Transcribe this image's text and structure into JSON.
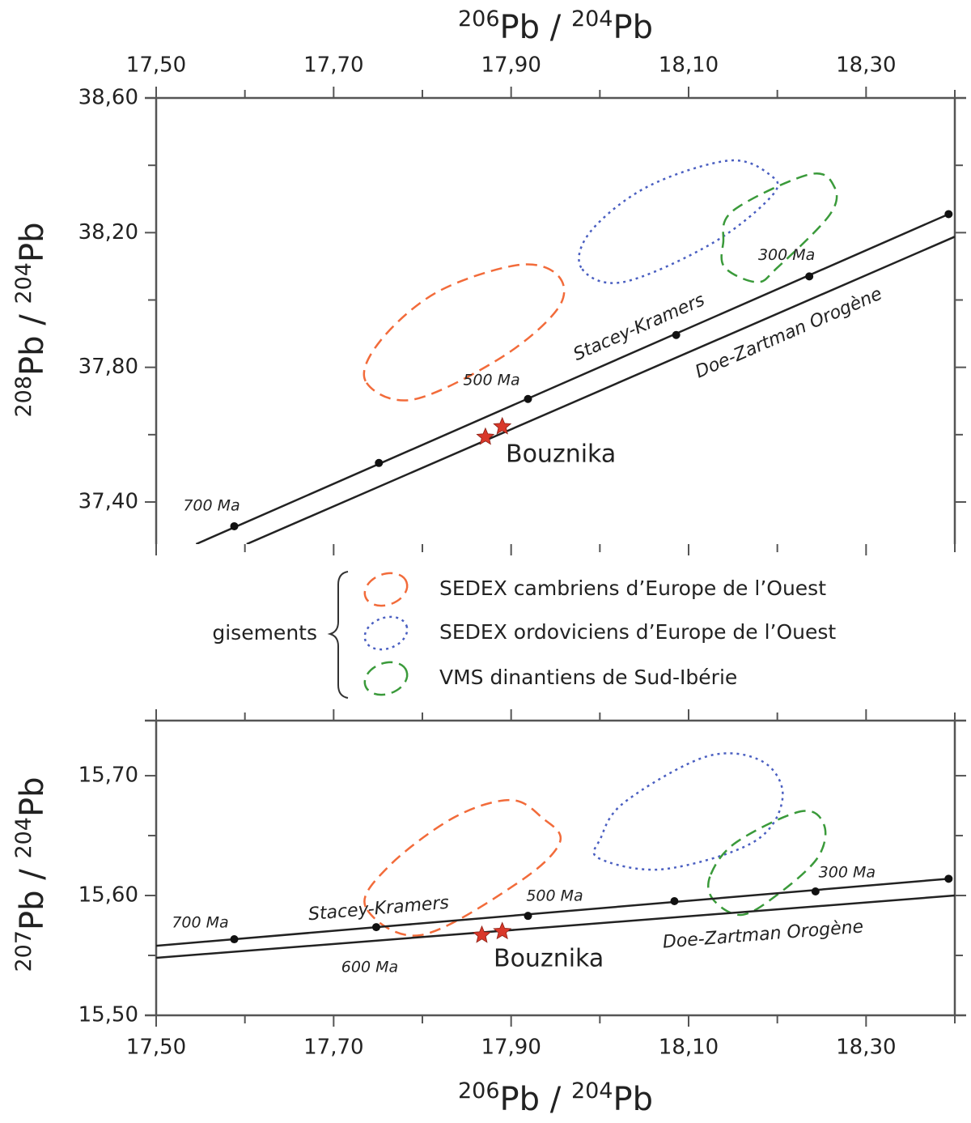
{
  "chart_data": [
    {
      "type": "scatter",
      "xlabel": [
        "206",
        "Pb / ",
        "204",
        "Pb"
      ],
      "ylabel": [
        "208",
        "Pb / ",
        "204",
        "Pb"
      ],
      "xlim": [
        17.5,
        18.4
      ],
      "ylim": [
        37.275,
        38.6
      ],
      "xticks": [
        {
          "value": 17.5,
          "label": "17,50"
        },
        {
          "value": 17.7,
          "label": "17,70"
        },
        {
          "value": 17.9,
          "label": "17,90"
        },
        {
          "value": 18.1,
          "label": "18,10"
        },
        {
          "value": 18.3,
          "label": "18,30"
        }
      ],
      "xminor": [
        17.6,
        17.8,
        18.0,
        18.2,
        18.4
      ],
      "yticks": [
        {
          "value": 37.4,
          "label": "37,40"
        },
        {
          "value": 37.8,
          "label": "37,80"
        },
        {
          "value": 38.2,
          "label": "38,20"
        },
        {
          "value": 38.6,
          "label": "38,60"
        }
      ],
      "yminor": [
        37.6,
        38.0,
        38.4
      ],
      "curves": [
        {
          "name": "Stacey-Kramers",
          "x": [
            17.545,
            18.393
          ],
          "y": [
            37.275,
            38.255
          ]
        },
        {
          "name": "Doe-Zartman  Orogène",
          "x": [
            17.602,
            18.4
          ],
          "y": [
            37.275,
            38.188
          ]
        }
      ],
      "ages": {
        "x": [
          17.588,
          17.751,
          17.919,
          18.086,
          18.236,
          18.393
        ],
        "y": [
          37.328,
          37.516,
          37.706,
          37.896,
          38.07,
          38.255
        ],
        "labels": [
          "700 Ma",
          null,
          "500 Ma",
          null,
          "300 Ma",
          null
        ]
      },
      "samples": {
        "name": "Bouznika",
        "color": "#d9382a",
        "x": [
          17.871,
          17.89
        ],
        "y": [
          37.593,
          37.624
        ]
      },
      "legend_title": "gisements",
      "fields": [
        {
          "name": "SEDEX cambriens d’Europe de l’Ouest",
          "color": "#f26b3a",
          "dash": "dashed",
          "x": [
            17.736,
            17.753,
            17.817,
            17.908,
            17.953,
            17.953,
            17.89,
            17.789
          ],
          "y": [
            37.759,
            37.88,
            38.024,
            38.104,
            38.072,
            37.976,
            37.831,
            37.704
          ]
        },
        {
          "name": "SEDEX ordoviciens d’Europe de l’Ouest",
          "color": "#4a5fc1",
          "dash": "dotted",
          "x": [
            17.979,
            17.99,
            18.054,
            18.145,
            18.191,
            18.195,
            18.127,
            18.026
          ],
          "y": [
            38.096,
            38.205,
            38.337,
            38.414,
            38.373,
            38.313,
            38.169,
            38.053
          ]
        },
        {
          "name": "VMS dinantiens de Sud-Ibérie",
          "color": "#3a9a3a",
          "dash": "dashed",
          "x": [
            18.139,
            18.15,
            18.236,
            18.264,
            18.259,
            18.2,
            18.177,
            18.141
          ],
          "y": [
            38.169,
            38.265,
            38.373,
            38.337,
            38.253,
            38.096,
            38.053,
            38.096
          ]
        }
      ]
    },
    {
      "type": "scatter",
      "xlabel": [
        "206",
        "Pb / ",
        "204",
        "Pb"
      ],
      "ylabel": [
        "207",
        "Pb / ",
        "204",
        "Pb"
      ],
      "xlim": [
        17.5,
        18.4
      ],
      "ylim": [
        15.5,
        15.746
      ],
      "xticks": [
        {
          "value": 17.5,
          "label": "17,50"
        },
        {
          "value": 17.7,
          "label": "17,70"
        },
        {
          "value": 17.9,
          "label": "17,90"
        },
        {
          "value": 18.1,
          "label": "18,10"
        },
        {
          "value": 18.3,
          "label": "18,30"
        }
      ],
      "xminor": [
        17.6,
        17.8,
        18.0,
        18.2,
        18.4
      ],
      "yticks": [
        {
          "value": 15.5,
          "label": "15,50"
        },
        {
          "value": 15.6,
          "label": "15,60"
        },
        {
          "value": 15.7,
          "label": "15,70"
        }
      ],
      "yminor": [
        15.55,
        15.65
      ],
      "curves": [
        {
          "name": "Stacey-Kramers",
          "x": [
            17.5,
            18.393
          ],
          "y": [
            15.558,
            15.614
          ]
        },
        {
          "name": "Doe-Zartman Orogène",
          "x": [
            17.5,
            18.4
          ],
          "y": [
            15.548,
            15.6
          ]
        }
      ],
      "ages": {
        "x": [
          17.588,
          17.748,
          17.919,
          18.084,
          18.243,
          18.393
        ],
        "y": [
          15.5635,
          15.5736,
          15.583,
          15.5953,
          15.6034,
          15.614
        ],
        "labels": [
          "700 Ma",
          "600 Ma",
          "500 Ma",
          null,
          "300 Ma",
          null
        ]
      },
      "samples": {
        "name": "Bouznika",
        "color": "#d9382a",
        "x": [
          17.867,
          17.89
        ],
        "y": [
          15.567,
          15.57
        ]
      },
      "fields": [
        {
          "color": "#f26b3a",
          "dash": "dashed",
          "x": [
            17.736,
            17.762,
            17.835,
            17.899,
            17.935,
            17.955,
            17.908,
            17.798
          ],
          "y": [
            15.5905,
            15.6243,
            15.6649,
            15.6797,
            15.6649,
            15.6446,
            15.6108,
            15.5669
          ]
        },
        {
          "color": "#4a5fc1",
          "dash": "dotted",
          "x": [
            18.001,
            18.028,
            18.12,
            18.183,
            18.206,
            18.174,
            18.072,
            17.999
          ],
          "y": [
            15.648,
            15.678,
            15.716,
            15.712,
            15.682,
            15.645,
            15.622,
            15.631
          ]
        },
        {
          "color": "#3a9a3a",
          "dash": "dashed",
          "x": [
            18.125,
            18.154,
            18.227,
            18.253,
            18.245,
            18.2,
            18.159,
            18.127
          ],
          "y": [
            15.6176,
            15.6446,
            15.6703,
            15.6581,
            15.6311,
            15.6007,
            15.5838,
            15.5973
          ]
        }
      ]
    }
  ]
}
